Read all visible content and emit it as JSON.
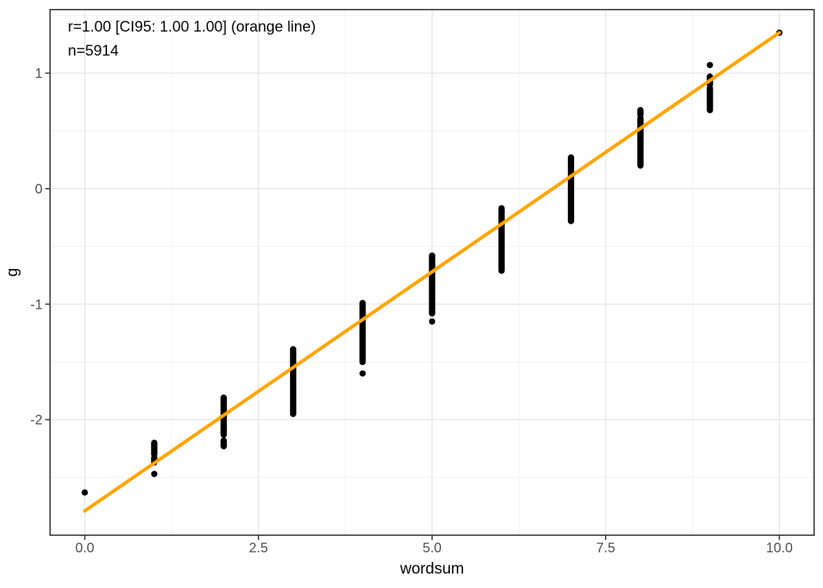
{
  "chart_data": {
    "type": "scatter",
    "title": "",
    "xlabel": "wordsum",
    "ylabel": "g",
    "annotation": {
      "line1": "r=1.00 [CI95: 1.00 1.00] (orange line)",
      "line2": "n=5914"
    },
    "xlim": [
      -0.5,
      10.5
    ],
    "ylim": [
      -3.0,
      1.55
    ],
    "x_major_ticks": [
      0,
      2.5,
      5,
      7.5,
      10
    ],
    "x_tick_labels": [
      "0.0",
      "2.5",
      "5.0",
      "7.5",
      "10.0"
    ],
    "x_minor_ticks": [
      1.25,
      3.75,
      6.25,
      8.75
    ],
    "y_major_ticks": [
      1,
      0,
      -1,
      -2
    ],
    "y_tick_labels": [
      "1",
      "0",
      "-1",
      "-2"
    ],
    "y_minor_ticks": [
      1.5,
      0.5,
      -0.5,
      -1.5,
      -2.5
    ],
    "grid": true,
    "legend_position": "none",
    "point_color": "#000000",
    "line_color": "#FFA500",
    "regression_line": {
      "x_start": 0,
      "y_start": -2.79,
      "x_end": 10,
      "y_end": 1.35
    },
    "clusters": [
      {
        "x": 0,
        "segments": [],
        "dots": [
          -2.63
        ]
      },
      {
        "x": 1,
        "segments": [
          [
            -2.2,
            -2.3
          ],
          [
            -2.33,
            -2.37
          ]
        ],
        "dots": [
          -2.47
        ]
      },
      {
        "x": 2,
        "segments": [
          [
            -1.81,
            -2.13
          ],
          [
            -2.18,
            -2.23
          ]
        ],
        "dots": []
      },
      {
        "x": 3,
        "segments": [
          [
            -1.39,
            -1.95
          ]
        ],
        "dots": []
      },
      {
        "x": 4,
        "segments": [
          [
            -0.99,
            -1.5
          ]
        ],
        "dots": [
          -1.6
        ]
      },
      {
        "x": 5,
        "segments": [
          [
            -0.58,
            -1.08
          ]
        ],
        "dots": [
          -1.15
        ]
      },
      {
        "x": 6,
        "segments": [
          [
            -0.17,
            -0.71
          ]
        ],
        "dots": []
      },
      {
        "x": 7,
        "segments": [
          [
            0.27,
            -0.28
          ]
        ],
        "dots": []
      },
      {
        "x": 8,
        "segments": [
          [
            0.68,
            0.64
          ],
          [
            0.61,
            0.2
          ]
        ],
        "dots": []
      },
      {
        "x": 9,
        "segments": [
          [
            0.97,
            0.9
          ],
          [
            0.87,
            0.68
          ]
        ],
        "dots": [
          1.07
        ]
      },
      {
        "x": 10,
        "segments": [],
        "dots": [
          1.35
        ]
      }
    ]
  }
}
